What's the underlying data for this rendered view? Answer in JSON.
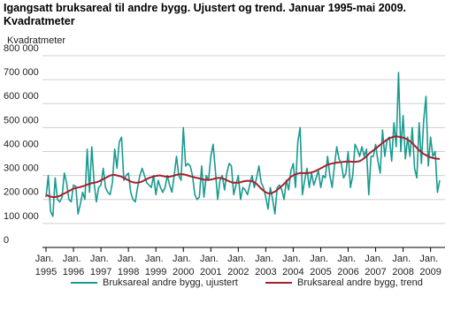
{
  "chart_data": {
    "type": "line",
    "title": "Igangsatt bruksareal til andre bygg. Ujustert og trend. Januar 1995-mai 2009. Kvadratmeter",
    "y_label": "Kvadratmeter",
    "xlim": [
      "1995-01",
      "2009-05"
    ],
    "xticks": [
      {
        "value": "1995-01",
        "label": "Jan.\n1995"
      },
      {
        "value": "1996-01",
        "label": "Jan.\n1996"
      },
      {
        "value": "1997-01",
        "label": "Jan.\n1997"
      },
      {
        "value": "1998-01",
        "label": "Jan.\n1998"
      },
      {
        "value": "1999-01",
        "label": "Jan.\n1999"
      },
      {
        "value": "2000-01",
        "label": "Jan.\n2000"
      },
      {
        "value": "2001-01",
        "label": "Jan.\n2001"
      },
      {
        "value": "2002-01",
        "label": "Jan.\n2002"
      },
      {
        "value": "2003-01",
        "label": "Jan.\n2003"
      },
      {
        "value": "2004-01",
        "label": "Jan.\n2004"
      },
      {
        "value": "2005-01",
        "label": "Jan.\n2005"
      },
      {
        "value": "2006-01",
        "label": "Jan.\n2006"
      },
      {
        "value": "2007-01",
        "label": "Jan.\n2007"
      },
      {
        "value": "2008-01",
        "label": "Jan.\n2008"
      },
      {
        "value": "2009-01",
        "label": "Jan.\n2009"
      }
    ],
    "ylim": [
      0,
      800000
    ],
    "yticks": [
      0,
      {
        "value": 100000,
        "label": "100 000"
      },
      {
        "value": 200000,
        "label": "200 000"
      },
      {
        "value": 300000,
        "label": "300 000"
      },
      {
        "value": 400000,
        "label": "400 000"
      },
      {
        "value": 500000,
        "label": "500 000"
      },
      {
        "value": 600000,
        "label": "600 000"
      },
      {
        "value": 700000,
        "label": "700 000"
      },
      {
        "value": 800000,
        "label": "800 000"
      }
    ],
    "grid": true,
    "legend": "bottom",
    "x": [
      "1995-01",
      "1995-02",
      "1995-03",
      "1995-04",
      "1995-05",
      "1995-06",
      "1995-07",
      "1995-08",
      "1995-09",
      "1995-10",
      "1995-11",
      "1995-12",
      "1996-01",
      "1996-02",
      "1996-03",
      "1996-04",
      "1996-05",
      "1996-06",
      "1996-07",
      "1996-08",
      "1996-09",
      "1996-10",
      "1996-11",
      "1996-12",
      "1997-01",
      "1997-02",
      "1997-03",
      "1997-04",
      "1997-05",
      "1997-06",
      "1997-07",
      "1997-08",
      "1997-09",
      "1997-10",
      "1997-11",
      "1997-12",
      "1998-01",
      "1998-02",
      "1998-03",
      "1998-04",
      "1998-05",
      "1998-06",
      "1998-07",
      "1998-08",
      "1998-09",
      "1998-10",
      "1998-11",
      "1998-12",
      "1999-01",
      "1999-02",
      "1999-03",
      "1999-04",
      "1999-05",
      "1999-06",
      "1999-07",
      "1999-08",
      "1999-09",
      "1999-10",
      "1999-11",
      "1999-12",
      "2000-01",
      "2000-02",
      "2000-03",
      "2000-04",
      "2000-05",
      "2000-06",
      "2000-07",
      "2000-08",
      "2000-09",
      "2000-10",
      "2000-11",
      "2000-12",
      "2001-01",
      "2001-02",
      "2001-03",
      "2001-04",
      "2001-05",
      "2001-06",
      "2001-07",
      "2001-08",
      "2001-09",
      "2001-10",
      "2001-11",
      "2001-12",
      "2002-01",
      "2002-02",
      "2002-03",
      "2002-04",
      "2002-05",
      "2002-06",
      "2002-07",
      "2002-08",
      "2002-09",
      "2002-10",
      "2002-11",
      "2002-12",
      "2003-01",
      "2003-02",
      "2003-03",
      "2003-04",
      "2003-05",
      "2003-06",
      "2003-07",
      "2003-08",
      "2003-09",
      "2003-10",
      "2003-11",
      "2003-12",
      "2004-01",
      "2004-02",
      "2004-03",
      "2004-04",
      "2004-05",
      "2004-06",
      "2004-07",
      "2004-08",
      "2004-09",
      "2004-10",
      "2004-11",
      "2004-12",
      "2005-01",
      "2005-02",
      "2005-03",
      "2005-04",
      "2005-05",
      "2005-06",
      "2005-07",
      "2005-08",
      "2005-09",
      "2005-10",
      "2005-11",
      "2005-12",
      "2006-01",
      "2006-02",
      "2006-03",
      "2006-04",
      "2006-05",
      "2006-06",
      "2006-07",
      "2006-08",
      "2006-09",
      "2006-10",
      "2006-11",
      "2006-12",
      "2007-01",
      "2007-02",
      "2007-03",
      "2007-04",
      "2007-05",
      "2007-06",
      "2007-07",
      "2007-08",
      "2007-09",
      "2007-10",
      "2007-11",
      "2007-12",
      "2008-01",
      "2008-02",
      "2008-03",
      "2008-04",
      "2008-05",
      "2008-06",
      "2008-07",
      "2008-08",
      "2008-09",
      "2008-10",
      "2008-11",
      "2008-12",
      "2009-01",
      "2009-02",
      "2009-03",
      "2009-04",
      "2009-05"
    ],
    "series": [
      {
        "name": "Bruksareal andre bygg, ujustert",
        "color": "#1a9a8f",
        "values": [
          210000,
          300000,
          150000,
          130000,
          290000,
          200000,
          190000,
          210000,
          310000,
          270000,
          200000,
          190000,
          260000,
          255000,
          140000,
          180000,
          230000,
          200000,
          410000,
          230000,
          420000,
          270000,
          190000,
          250000,
          260000,
          330000,
          250000,
          230000,
          220000,
          270000,
          410000,
          330000,
          440000,
          460000,
          280000,
          300000,
          310000,
          230000,
          200000,
          190000,
          250000,
          300000,
          330000,
          300000,
          270000,
          260000,
          250000,
          300000,
          220000,
          280000,
          250000,
          230000,
          250000,
          300000,
          260000,
          230000,
          300000,
          380000,
          300000,
          280000,
          500000,
          340000,
          350000,
          340000,
          300000,
          220000,
          200000,
          210000,
          340000,
          210000,
          300000,
          280000,
          380000,
          430000,
          320000,
          200000,
          280000,
          300000,
          240000,
          310000,
          350000,
          340000,
          220000,
          260000,
          300000,
          200000,
          250000,
          240000,
          220000,
          260000,
          300000,
          250000,
          290000,
          340000,
          270000,
          250000,
          210000,
          160000,
          250000,
          200000,
          140000,
          250000,
          260000,
          240000,
          200000,
          280000,
          240000,
          320000,
          350000,
          250000,
          440000,
          500000,
          220000,
          280000,
          330000,
          250000,
          310000,
          260000,
          290000,
          320000,
          250000,
          300000,
          290000,
          380000,
          300000,
          250000,
          340000,
          420000,
          370000,
          350000,
          290000,
          310000,
          400000,
          250000,
          300000,
          430000,
          410000,
          380000,
          420000,
          380000,
          410000,
          220000,
          380000,
          380000,
          430000,
          360000,
          310000,
          490000,
          380000,
          450000,
          460000,
          360000,
          520000,
          420000,
          730000,
          400000,
          550000,
          370000,
          460000,
          380000,
          500000,
          330000,
          290000,
          520000,
          350000,
          530000,
          630000,
          340000,
          460000,
          380000,
          400000,
          230000,
          280000
        ]
      },
      {
        "name": "Bruksareal andre bygg, trend",
        "color": "#a3212f",
        "values": [
          220000,
          215000,
          212000,
          210000,
          210000,
          212000,
          215000,
          220000,
          225000,
          230000,
          235000,
          240000,
          245000,
          248000,
          250000,
          252000,
          255000,
          258000,
          262000,
          265000,
          268000,
          270000,
          272000,
          275000,
          280000,
          285000,
          290000,
          295000,
          300000,
          302000,
          303000,
          300000,
          298000,
          295000,
          290000,
          285000,
          280000,
          275000,
          272000,
          270000,
          270000,
          272000,
          275000,
          280000,
          285000,
          290000,
          293000,
          296000,
          298000,
          300000,
          300000,
          298000,
          296000,
          295000,
          295000,
          297000,
          300000,
          303000,
          305000,
          305000,
          305000,
          303000,
          300000,
          297000,
          295000,
          292000,
          290000,
          288000,
          285000,
          283000,
          282000,
          282000,
          283000,
          285000,
          288000,
          290000,
          290000,
          288000,
          285000,
          280000,
          276000,
          272000,
          270000,
          270000,
          270000,
          272000,
          275000,
          277000,
          278000,
          278000,
          276000,
          272000,
          265000,
          255000,
          245000,
          237000,
          230000,
          226000,
          225000,
          228000,
          233000,
          240000,
          248000,
          256000,
          265000,
          275000,
          285000,
          295000,
          300000,
          305000,
          308000,
          310000,
          310000,
          310000,
          310000,
          311000,
          313000,
          316000,
          320000,
          325000,
          330000,
          335000,
          340000,
          345000,
          348000,
          350000,
          352000,
          354000,
          355000,
          356000,
          357000,
          358000,
          358000,
          358000,
          357000,
          357000,
          358000,
          360000,
          365000,
          372000,
          380000,
          390000,
          398000,
          405000,
          412000,
          420000,
          428000,
          436000,
          443000,
          450000,
          455000,
          459000,
          462000,
          463000,
          462000,
          460000,
          458000,
          455000,
          450000,
          443000,
          435000,
          425000,
          415000,
          405000,
          397000,
          390000,
          385000,
          380000,
          376000,
          373000,
          371000,
          370000,
          369000
        ]
      }
    ]
  }
}
